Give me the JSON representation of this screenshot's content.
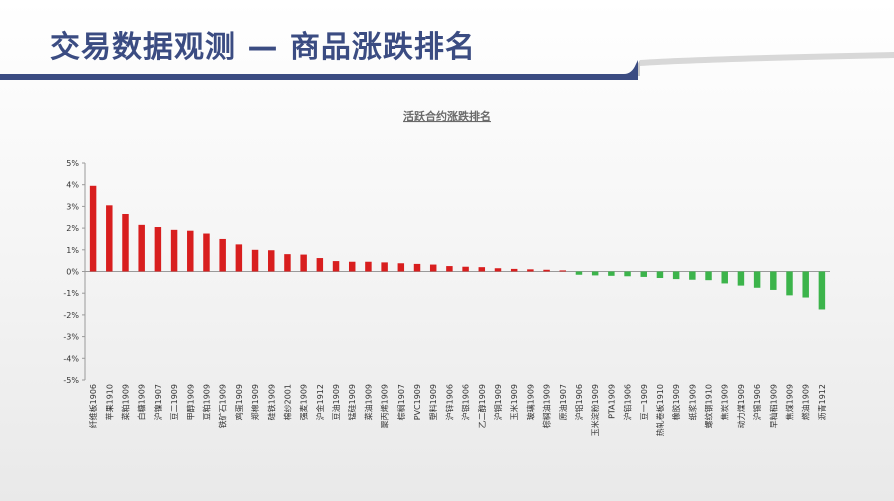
{
  "page": {
    "title": "交易数据观测 — 商品涨跌排名"
  },
  "chart_data": {
    "type": "bar",
    "title": "活跃合约涨跌排名",
    "xlabel": "",
    "ylabel": "",
    "ylim": [
      -5,
      5
    ],
    "yticks": [
      "5%",
      "4%",
      "3%",
      "2%",
      "1%",
      "0%",
      "-1%",
      "-2%",
      "-3%",
      "-4%",
      "-5%"
    ],
    "grid": false,
    "legend": "none",
    "colors": {
      "positive": "#d81e1e",
      "negative": "#3cb44b"
    },
    "categories": [
      "纤维板1906",
      "苹果1910",
      "菜粕1909",
      "白糖1909",
      "沪镍1907",
      "豆二1909",
      "甲醇1909",
      "豆粕1909",
      "铁矿石1909",
      "鸡蛋1909",
      "郑棉1909",
      "硅铁1909",
      "棉纱2001",
      "强麦1909",
      "沪金1912",
      "豆油1909",
      "锰硅1909",
      "菜油1909",
      "聚丙烯1909",
      "棕榈1907",
      "PVC1909",
      "塑料1909",
      "沪锌1906",
      "沪银1906",
      "乙二醇1909",
      "沪铜1909",
      "玉米1909",
      "玻璃1909",
      "棕榈油1909",
      "原油1907",
      "沪铝1906",
      "玉米淀粉1909",
      "PTA1909",
      "沪铅1906",
      "豆一1909",
      "热轧卷板1910",
      "橡胶1909",
      "纸浆1909",
      "螺纹钢1910",
      "焦炭1909",
      "动力煤1909",
      "沪锡1906",
      "早籼稻1909",
      "焦煤1909",
      "燃油1909",
      "沥青1912"
    ],
    "values": [
      3.95,
      3.05,
      2.65,
      2.15,
      2.05,
      1.92,
      1.88,
      1.75,
      1.5,
      1.25,
      1.0,
      0.98,
      0.8,
      0.78,
      0.62,
      0.48,
      0.45,
      0.45,
      0.42,
      0.38,
      0.35,
      0.32,
      0.25,
      0.22,
      0.2,
      0.15,
      0.12,
      0.1,
      0.08,
      0.05,
      -0.15,
      -0.18,
      -0.2,
      -0.22,
      -0.25,
      -0.3,
      -0.35,
      -0.38,
      -0.4,
      -0.55,
      -0.65,
      -0.75,
      -0.85,
      -1.1,
      -1.2,
      -1.75
    ]
  }
}
